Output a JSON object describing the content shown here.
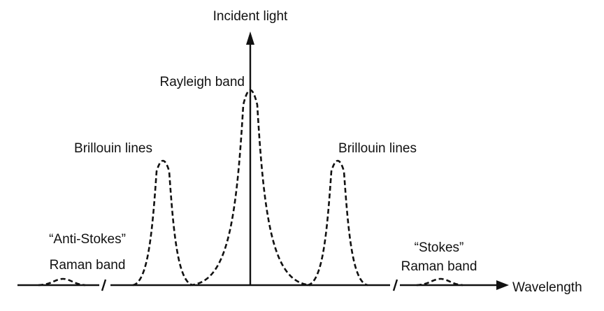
{
  "labels": {
    "incident_light": "Incident light",
    "rayleigh": "Rayleigh band",
    "brillouin_left": "Brillouin lines",
    "brillouin_right": "Brillouin lines",
    "anti_stokes": [
      "“Anti-Stokes”",
      "Raman band"
    ],
    "stokes": [
      "“Stokes”",
      "Raman band"
    ],
    "wavelength": "Wavelength"
  }
}
